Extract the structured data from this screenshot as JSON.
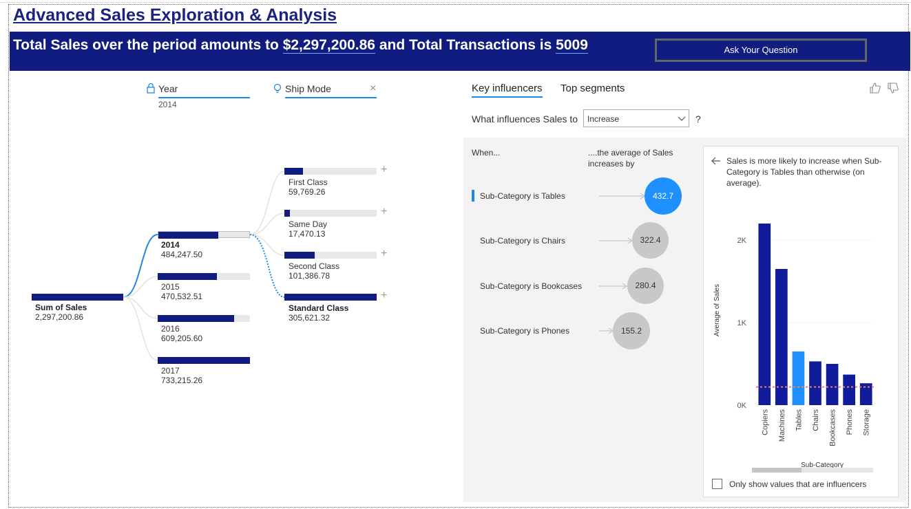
{
  "title": "Advanced Sales Exploration & Analysis",
  "banner": {
    "prefix": "Total Sales over the period amounts to ",
    "total_sales": "$2,297,200.86",
    "middle": " and Total Transactions is ",
    "transactions": "5009",
    "ask_button": "Ask Your Question"
  },
  "tree": {
    "year_header": "Year",
    "year_selected": "2014",
    "shipmode_header": "Ship Mode",
    "root": {
      "label": "Sum of Sales",
      "value": "2,297,200.86"
    },
    "years": [
      {
        "label": "2014",
        "value": "484,247.50",
        "fraction": 0.66
      },
      {
        "label": "2015",
        "value": "470,532.51",
        "fraction": 0.64
      },
      {
        "label": "2016",
        "value": "609,205.60",
        "fraction": 0.83
      },
      {
        "label": "2017",
        "value": "733,215.26",
        "fraction": 1.0
      }
    ],
    "ship_modes": [
      {
        "label": "First Class",
        "value": "59,769.26",
        "fraction": 0.2
      },
      {
        "label": "Same Day",
        "value": "17,470.13",
        "fraction": 0.06
      },
      {
        "label": "Second Class",
        "value": "101,386.78",
        "fraction": 0.33
      },
      {
        "label": "Standard Class",
        "value": "305,621.32",
        "fraction": 1.0
      }
    ]
  },
  "influencers": {
    "tab_key": "Key influencers",
    "tab_segments": "Top segments",
    "question": "What influences Sales to",
    "dropdown_value": "Increase",
    "question_mark": "?",
    "when_label": "When...",
    "avg_label": "....the average of Sales increases by",
    "items": [
      {
        "label": "Sub-Category is Tables",
        "value": "432.7",
        "active": true
      },
      {
        "label": "Sub-Category is Chairs",
        "value": "322.4",
        "active": false
      },
      {
        "label": "Sub-Category is Bookcases",
        "value": "280.4",
        "active": false
      },
      {
        "label": "Sub-Category is Phones",
        "value": "155.2",
        "active": false
      }
    ],
    "detail_text": "Sales is more likely to increase when Sub-Category is Tables than otherwise (on average).",
    "checkbox_label": "Only show values that are influencers"
  },
  "chart_data": {
    "type": "bar",
    "categories": [
      "Copiers",
      "Machines",
      "Tables",
      "Chairs",
      "Bookcases",
      "Phones",
      "Storage"
    ],
    "values": [
      2200,
      1650,
      650,
      530,
      500,
      370,
      265
    ],
    "highlight": "Tables",
    "reference_line": 220,
    "yticks": [
      "0K",
      "1K",
      "2K"
    ],
    "ylim": [
      0,
      2300
    ],
    "xlabel": "Sub-Category",
    "ylabel": "Average of Sales",
    "colors": {
      "bar": "#111c9c",
      "highlight": "#1e90ff",
      "reference": "#f08060"
    }
  }
}
